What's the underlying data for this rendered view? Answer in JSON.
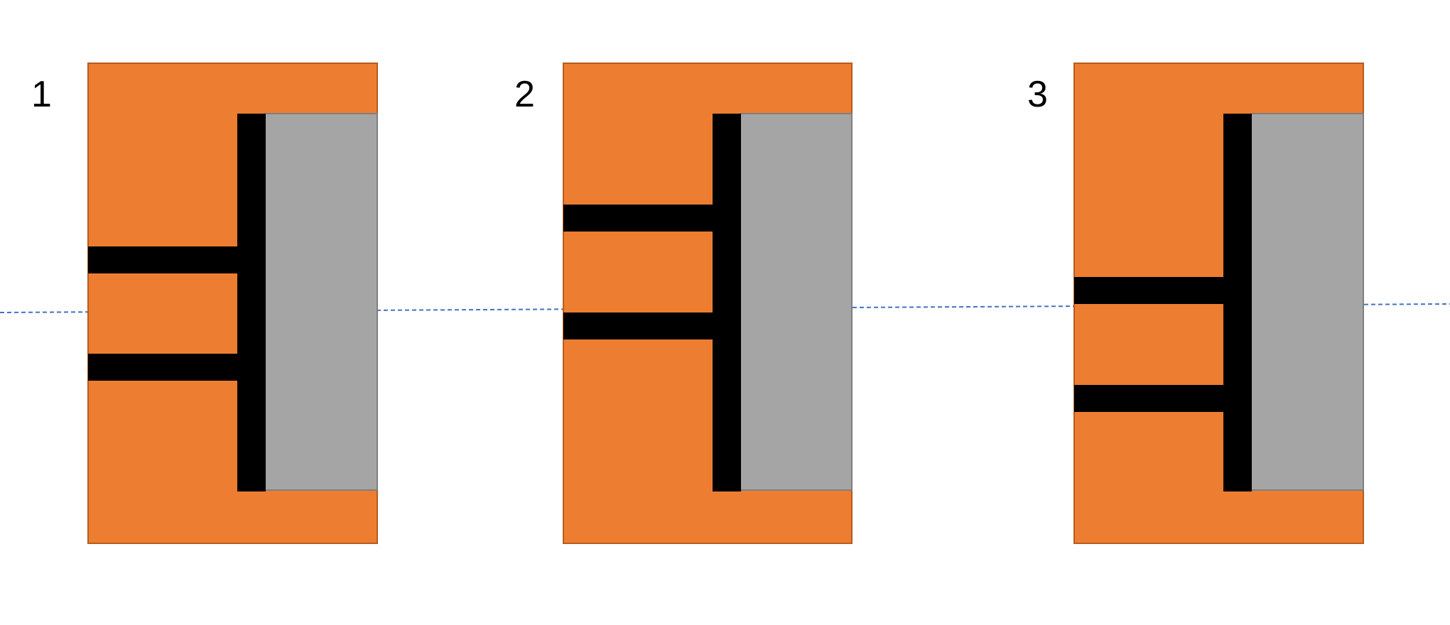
{
  "colors": {
    "background": "#ffffff",
    "body_fill": "#ed7d31",
    "body_stroke": "#b65c1f",
    "insert_fill": "#a5a5a5",
    "insert_stroke": "#7f7f7f",
    "bar_fill": "#000000",
    "reference_line": "#4472c4"
  },
  "panels": [
    {
      "label": "1",
      "bar_level": "below-line"
    },
    {
      "label": "2",
      "bar_level": "above-line"
    },
    {
      "label": "3",
      "bar_level": "straddling-line"
    }
  ]
}
